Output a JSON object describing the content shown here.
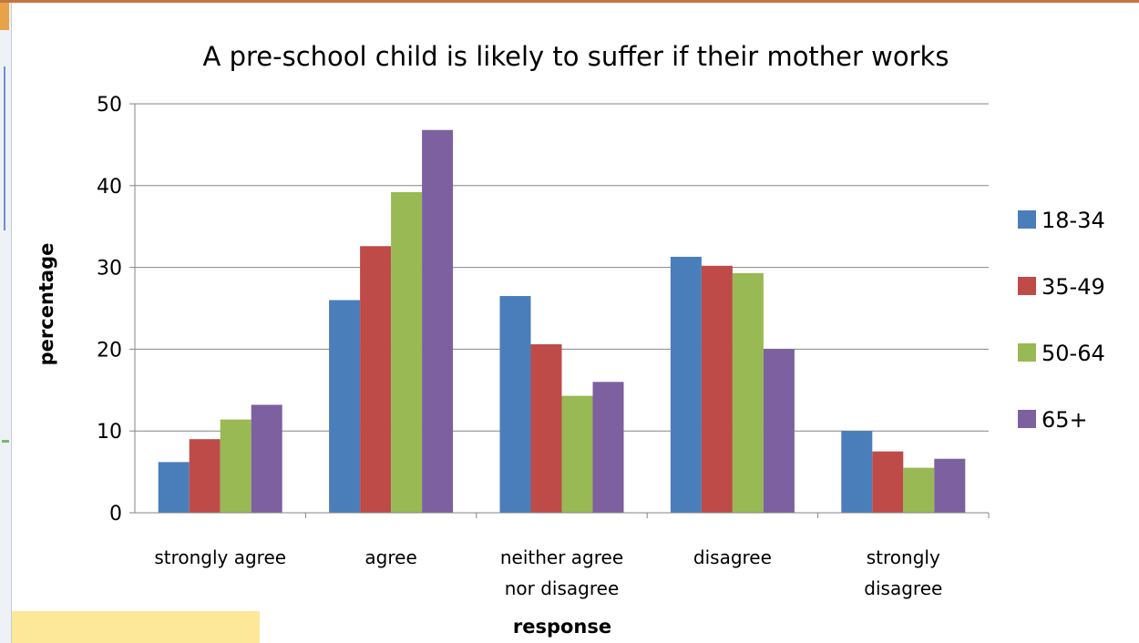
{
  "chart_data": {
    "type": "bar",
    "title": "A pre-school child is likely to suffer if their mother works",
    "xlabel": "response",
    "ylabel": "percentage",
    "ylim": [
      0,
      50
    ],
    "yticks": [
      0,
      10,
      20,
      30,
      40,
      50
    ],
    "grid": true,
    "legend_position": "right",
    "categories": [
      [
        "strongly agree"
      ],
      [
        "agree"
      ],
      [
        "neither agree",
        "nor disagree"
      ],
      [
        "disagree"
      ],
      [
        "strongly",
        "disagree"
      ]
    ],
    "series": [
      {
        "name": "18-34",
        "color": "#4a7ebb",
        "values": [
          6.2,
          26,
          26.5,
          31.3,
          10
        ]
      },
      {
        "name": "35-49",
        "color": "#be4b48",
        "values": [
          9,
          32.6,
          20.6,
          30.2,
          7.5
        ]
      },
      {
        "name": "50-64",
        "color": "#98b954",
        "values": [
          11.4,
          39.2,
          14.3,
          29.3,
          5.5
        ]
      },
      {
        "name": "65+",
        "color": "#7d60a0",
        "values": [
          13.2,
          46.8,
          16,
          20,
          6.6
        ]
      }
    ]
  }
}
